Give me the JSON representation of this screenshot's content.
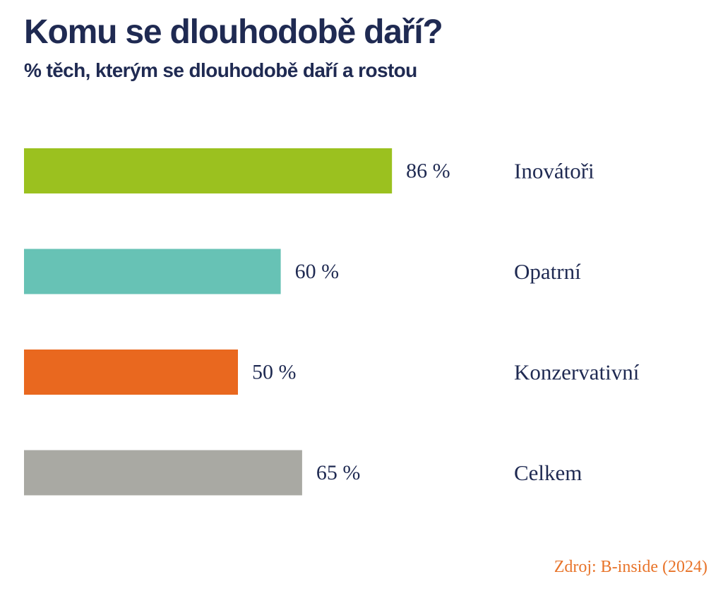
{
  "chart_data": {
    "type": "bar",
    "orientation": "horizontal",
    "title": "Komu se dlouhodobě daří?",
    "subtitle": "% těch, kterým se dlouhodobě daří a rostou",
    "categories": [
      "Inovátoři",
      "Opatrní",
      "Konzervativní",
      "Celkem"
    ],
    "values": [
      86,
      60,
      50,
      65
    ],
    "value_labels": [
      "86 %",
      "60 %",
      "50 %",
      "65 %"
    ],
    "colors": [
      "#9bc11f",
      "#67c2b5",
      "#e9681f",
      "#a9a9a3"
    ],
    "unit": "%",
    "xlim": [
      0,
      100
    ],
    "grid": false,
    "legend": "none"
  },
  "source": "Zdroj: B-inside (2024)"
}
